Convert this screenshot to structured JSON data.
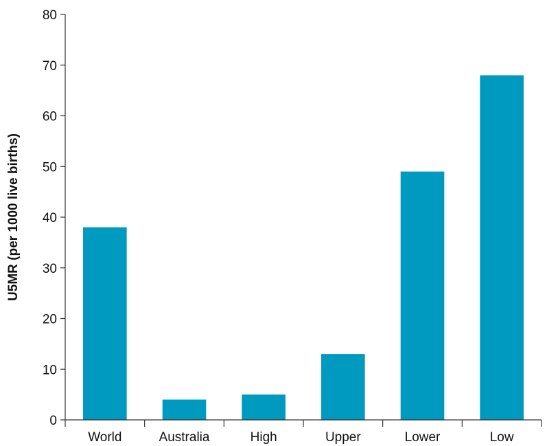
{
  "chart_data": {
    "type": "bar",
    "title": "",
    "xlabel": "",
    "ylabel": "U5MR (per 1000 live births)",
    "categories": [
      "World",
      "Australia",
      "High",
      "Upper",
      "Lower",
      "Low"
    ],
    "values": [
      38,
      4,
      5,
      13,
      49,
      68
    ],
    "ylim": [
      0,
      80
    ],
    "yticks": [
      "0",
      "10",
      "20",
      "30",
      "40",
      "50",
      "60",
      "70",
      "80"
    ],
    "grid": false,
    "bar_color": "#0099bf"
  }
}
